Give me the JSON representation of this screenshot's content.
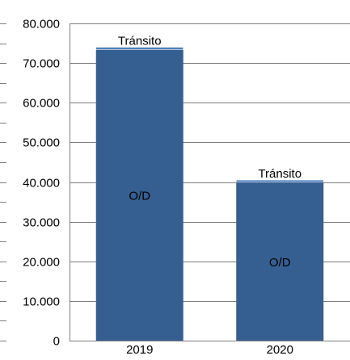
{
  "chart_data": {
    "type": "bar",
    "stacked": true,
    "categories": [
      "2019",
      "2020"
    ],
    "series": [
      {
        "name": "O/D",
        "values": [
          73400,
          40000
        ]
      },
      {
        "name": "Tránsito",
        "values": [
          600,
          500
        ]
      }
    ],
    "ylim": [
      0,
      80000
    ],
    "yticks": [
      0,
      10000,
      20000,
      30000,
      40000,
      50000,
      60000,
      70000,
      80000
    ],
    "ytick_labels": [
      "0",
      "10.000",
      "20.000",
      "30.000",
      "40.000",
      "50.000",
      "60.000",
      "70.000",
      "80.000"
    ],
    "grid": true,
    "legend": "none",
    "colors": {
      "od": "#365f91",
      "transit": "#4f81bd",
      "grid": "#7f7f7f",
      "axis": "#7f7f7f"
    }
  }
}
